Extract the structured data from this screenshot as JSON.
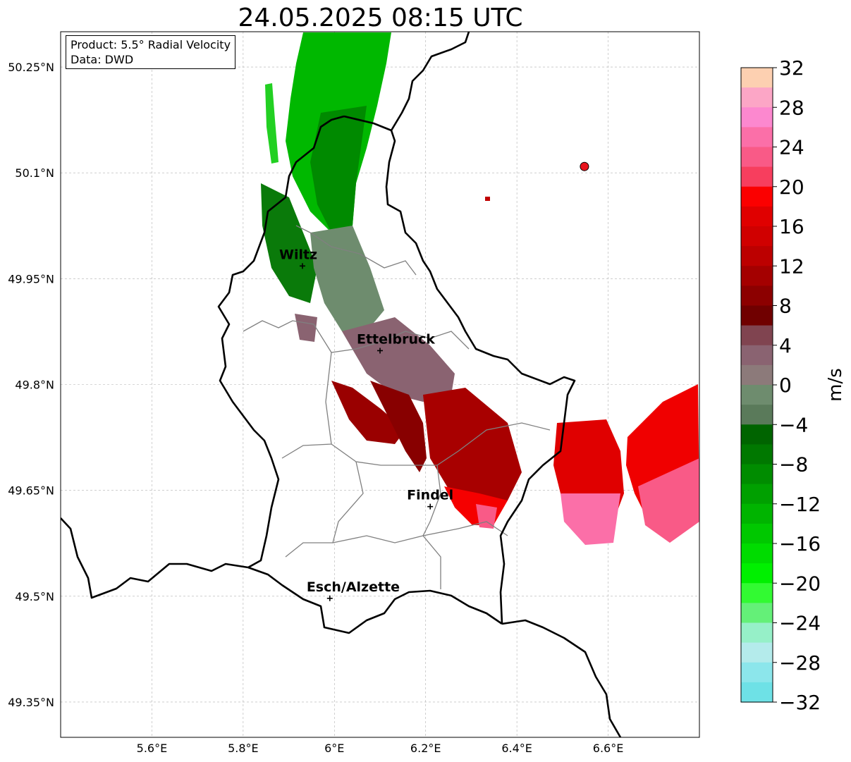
{
  "title": "24.05.2025 08:15 UTC",
  "info": {
    "product": "Product: 5.5° Radial Velocity",
    "data": "Data: DWD"
  },
  "axes": {
    "lon_min": 5.4,
    "lon_max": 6.8,
    "lat_min": 49.3,
    "lat_max": 50.3,
    "x_ticks": [
      {
        "value": 5.6,
        "label": "5.6°E"
      },
      {
        "value": 5.8,
        "label": "5.8°E"
      },
      {
        "value": 6.0,
        "label": "6°E"
      },
      {
        "value": 6.2,
        "label": "6.2°E"
      },
      {
        "value": 6.4,
        "label": "6.4°E"
      },
      {
        "value": 6.6,
        "label": "6.6°E"
      }
    ],
    "y_ticks": [
      {
        "value": 49.35,
        "label": "49.35°N"
      },
      {
        "value": 49.5,
        "label": "49.5°N"
      },
      {
        "value": 49.65,
        "label": "49.65°N"
      },
      {
        "value": 49.8,
        "label": "49.8°N"
      },
      {
        "value": 49.95,
        "label": "49.95°N"
      },
      {
        "value": 50.1,
        "label": "50.1°N"
      },
      {
        "value": 50.25,
        "label": "50.25°N"
      }
    ]
  },
  "cities": [
    {
      "name": "Wiltz",
      "lon": 5.93,
      "lat": 49.968
    },
    {
      "name": "Ettelbruck",
      "lon": 6.1,
      "lat": 49.848
    },
    {
      "name": "Findel",
      "lon": 6.21,
      "lat": 49.627
    },
    {
      "name": "Esch/Alzette",
      "lon": 5.99,
      "lat": 49.497
    }
  ],
  "radar_site": {
    "lon": 6.548,
    "lat": 50.109,
    "color": "#e8141c"
  },
  "colorbar": {
    "label": "m/s",
    "min": -32,
    "max": 32,
    "tick_labels": [
      "32",
      "28",
      "24",
      "20",
      "16",
      "12",
      "8",
      "4",
      "0",
      "−4",
      "−8",
      "−12",
      "−16",
      "−20",
      "−24",
      "−28",
      "−32"
    ],
    "tick_values": [
      32,
      28,
      24,
      20,
      16,
      12,
      8,
      4,
      0,
      -4,
      -8,
      -12,
      -16,
      -20,
      -24,
      -28,
      -32
    ],
    "colors_top_to_bottom": [
      "#fdd0b1",
      "#fca6c6",
      "#fc88cf",
      "#fb6fa8",
      "#f95a87",
      "#f73e5e",
      "#fb0000",
      "#e00000",
      "#d00000",
      "#bc0000",
      "#a40000",
      "#8c0000",
      "#700000",
      "#804450",
      "#8a6371",
      "#8c7a7a",
      "#6e8c6e",
      "#5a7a5a",
      "#006400",
      "#007800",
      "#008c00",
      "#00a000",
      "#00b400",
      "#00c800",
      "#00dc00",
      "#00f000",
      "#32fa32",
      "#64f078",
      "#96f0c8",
      "#b4ebeb",
      "#8ce6eb",
      "#6ee1e6"
    ]
  },
  "velocity_cells": [
    {
      "lon": 6.02,
      "lat": 50.24,
      "v": -19
    },
    {
      "lon": 6.06,
      "lat": 50.22,
      "v": -17
    },
    {
      "lon": 6.1,
      "lat": 50.23,
      "v": -14
    },
    {
      "lon": 5.99,
      "lat": 50.2,
      "v": -17
    },
    {
      "lon": 6.03,
      "lat": 50.18,
      "v": -14
    },
    {
      "lon": 6.07,
      "lat": 50.16,
      "v": -12
    },
    {
      "lon": 5.96,
      "lat": 50.14,
      "v": -15
    },
    {
      "lon": 6.0,
      "lat": 50.12,
      "v": -12
    },
    {
      "lon": 6.04,
      "lat": 50.1,
      "v": -10
    },
    {
      "lon": 5.95,
      "lat": 50.08,
      "v": -13
    },
    {
      "lon": 5.99,
      "lat": 50.06,
      "v": -11
    },
    {
      "lon": 6.03,
      "lat": 50.04,
      "v": -8
    },
    {
      "lon": 5.9,
      "lat": 50.02,
      "v": -9
    },
    {
      "lon": 5.94,
      "lat": 50.0,
      "v": -8
    },
    {
      "lon": 5.98,
      "lat": 50.01,
      "v": -7
    },
    {
      "lon": 5.92,
      "lat": 49.96,
      "v": -3
    },
    {
      "lon": 5.96,
      "lat": 49.93,
      "v": -2
    },
    {
      "lon": 6.04,
      "lat": 49.97,
      "v": -2
    },
    {
      "lon": 6.06,
      "lat": 49.92,
      "v": -2
    },
    {
      "lon": 6.09,
      "lat": 49.89,
      "v": -1
    },
    {
      "lon": 6.12,
      "lat": 49.86,
      "v": 1
    },
    {
      "lon": 6.15,
      "lat": 49.83,
      "v": 3
    },
    {
      "lon": 6.18,
      "lat": 49.8,
      "v": 4
    },
    {
      "lon": 6.11,
      "lat": 49.8,
      "v": 1
    },
    {
      "lon": 6.14,
      "lat": 49.77,
      "v": 5
    },
    {
      "lon": 6.06,
      "lat": 49.76,
      "v": 11
    },
    {
      "lon": 6.1,
      "lat": 49.73,
      "v": 12
    },
    {
      "lon": 6.22,
      "lat": 49.76,
      "v": 9
    },
    {
      "lon": 6.27,
      "lat": 49.74,
      "v": 8
    },
    {
      "lon": 6.24,
      "lat": 49.7,
      "v": 12
    },
    {
      "lon": 6.3,
      "lat": 49.68,
      "v": 14
    },
    {
      "lon": 6.28,
      "lat": 49.64,
      "v": 19
    },
    {
      "lon": 6.33,
      "lat": 49.61,
      "v": 25
    },
    {
      "lon": 6.55,
      "lat": 49.72,
      "v": 15
    },
    {
      "lon": 6.56,
      "lat": 49.67,
      "v": 18
    },
    {
      "lon": 6.57,
      "lat": 49.62,
      "v": 26
    },
    {
      "lon": 6.72,
      "lat": 49.74,
      "v": 17
    },
    {
      "lon": 6.74,
      "lat": 49.68,
      "v": 19
    },
    {
      "lon": 6.75,
      "lat": 49.63,
      "v": 24
    }
  ]
}
